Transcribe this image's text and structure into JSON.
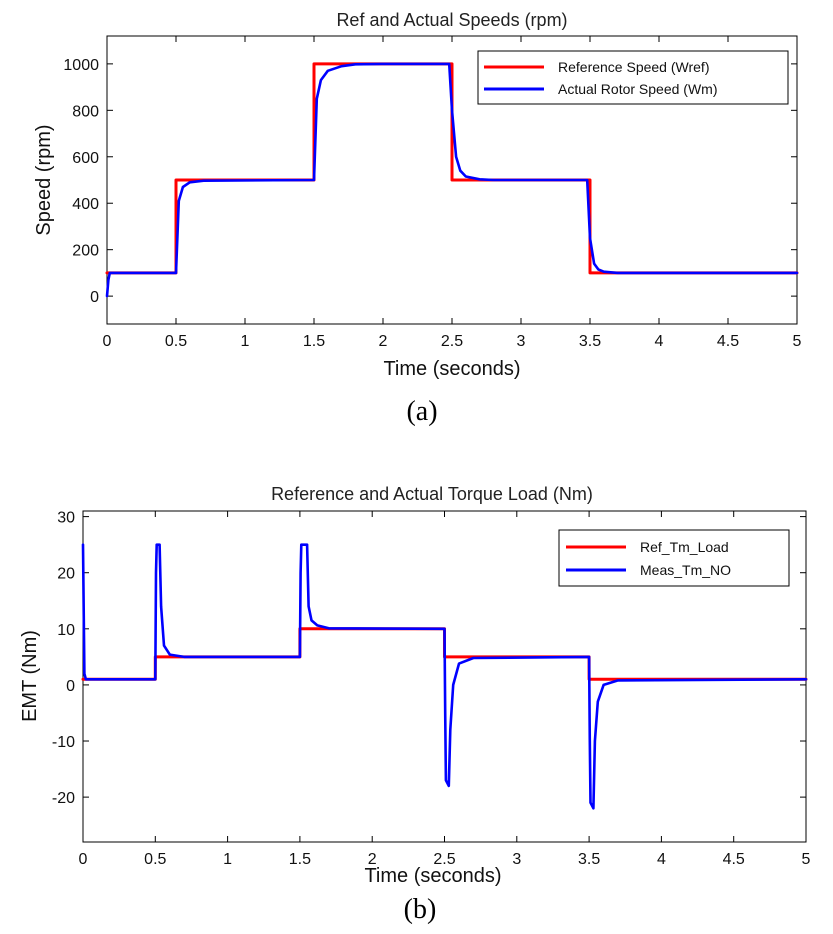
{
  "colors": {
    "reference": "#ff0000",
    "actual": "#0000ff",
    "axis": "#000000"
  },
  "chart_data": [
    {
      "type": "line",
      "caption": "(a)",
      "title": "Ref and Actual Speeds (rpm)",
      "xlabel": "Time (seconds)",
      "ylabel": "Speed (rpm)",
      "xlim": [
        0,
        5
      ],
      "ylim": [
        -120,
        1120
      ],
      "xticks": [
        0,
        0.5,
        1,
        1.5,
        2,
        2.5,
        3,
        3.5,
        4,
        4.5,
        5
      ],
      "yticks": [
        0,
        200,
        400,
        600,
        800,
        1000
      ],
      "grid": false,
      "legend_position": "top-right",
      "series": [
        {
          "name": "Reference Speed (Wref)",
          "color": "#ff0000",
          "x": [
            0,
            0.5,
            0.5,
            1.5,
            1.5,
            2.5,
            2.5,
            3.5,
            3.5,
            5
          ],
          "y": [
            100,
            100,
            500,
            500,
            1000,
            1000,
            500,
            500,
            100,
            100
          ]
        },
        {
          "name": "Actual Rotor Speed (Wm)",
          "color": "#0000ff",
          "x": [
            0,
            0.01,
            0.02,
            0.5,
            0.52,
            0.55,
            0.6,
            0.7,
            1.5,
            1.52,
            1.55,
            1.6,
            1.7,
            1.8,
            2.0,
            2.48,
            2.5,
            2.53,
            2.56,
            2.6,
            2.7,
            2.8,
            3.48,
            3.5,
            3.53,
            3.56,
            3.6,
            3.7,
            5.0
          ],
          "y": [
            0,
            70,
            100,
            100,
            410,
            470,
            490,
            497,
            500,
            850,
            930,
            970,
            990,
            998,
            1000,
            1000,
            800,
            600,
            540,
            515,
            503,
            500,
            500,
            250,
            140,
            115,
            105,
            100,
            100
          ]
        }
      ]
    },
    {
      "type": "line",
      "caption": "(b)",
      "title": "Reference and Actual Torque Load (Nm)",
      "xlabel": "Time (seconds)",
      "ylabel": "EMT (Nm)",
      "xlim": [
        0,
        5
      ],
      "ylim": [
        -28,
        31
      ],
      "xticks": [
        0,
        0.5,
        1,
        1.5,
        2,
        2.5,
        3,
        3.5,
        4,
        4.5,
        5
      ],
      "yticks": [
        -20,
        -10,
        0,
        10,
        20,
        30
      ],
      "grid": false,
      "legend_position": "top-right",
      "series": [
        {
          "name": "Ref_Tm_Load",
          "color": "#ff0000",
          "x": [
            0,
            0.5,
            0.5,
            1.5,
            1.5,
            2.5,
            2.5,
            3.5,
            3.5,
            5
          ],
          "y": [
            1,
            1,
            5,
            5,
            10,
            10,
            5,
            5,
            1,
            1
          ]
        },
        {
          "name": "Meas_Tm_NO",
          "color": "#0000ff",
          "x": [
            0,
            0.01,
            0.02,
            0.5,
            0.505,
            0.51,
            0.53,
            0.54,
            0.56,
            0.6,
            0.7,
            1.5,
            1.505,
            1.51,
            1.55,
            1.56,
            1.58,
            1.62,
            1.7,
            2.5,
            2.505,
            2.51,
            2.53,
            2.54,
            2.56,
            2.6,
            2.7,
            3.5,
            3.505,
            3.51,
            3.53,
            3.54,
            3.56,
            3.6,
            3.7,
            5.0
          ],
          "y": [
            25,
            2,
            1,
            1,
            20,
            25,
            25,
            14,
            7,
            5.4,
            5,
            5,
            20,
            25,
            25,
            14,
            11.5,
            10.6,
            10.1,
            10,
            -5,
            -17,
            -18,
            -8,
            0,
            3.8,
            4.8,
            5,
            -10,
            -21,
            -22,
            -10,
            -3,
            0,
            0.8,
            1
          ]
        }
      ]
    }
  ]
}
